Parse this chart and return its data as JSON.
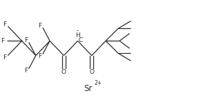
{
  "bg_color": "#ffffff",
  "line_color": "#2a2a2a",
  "text_color": "#2a2a2a",
  "figsize": [
    2.88,
    1.48
  ],
  "dpi": 100,
  "sr_text": "Sr",
  "sr_superscript": "2+",
  "minus_text": "-",
  "H_text": "H",
  "C_text": "C",
  "F_text": "F",
  "O_text": "O"
}
